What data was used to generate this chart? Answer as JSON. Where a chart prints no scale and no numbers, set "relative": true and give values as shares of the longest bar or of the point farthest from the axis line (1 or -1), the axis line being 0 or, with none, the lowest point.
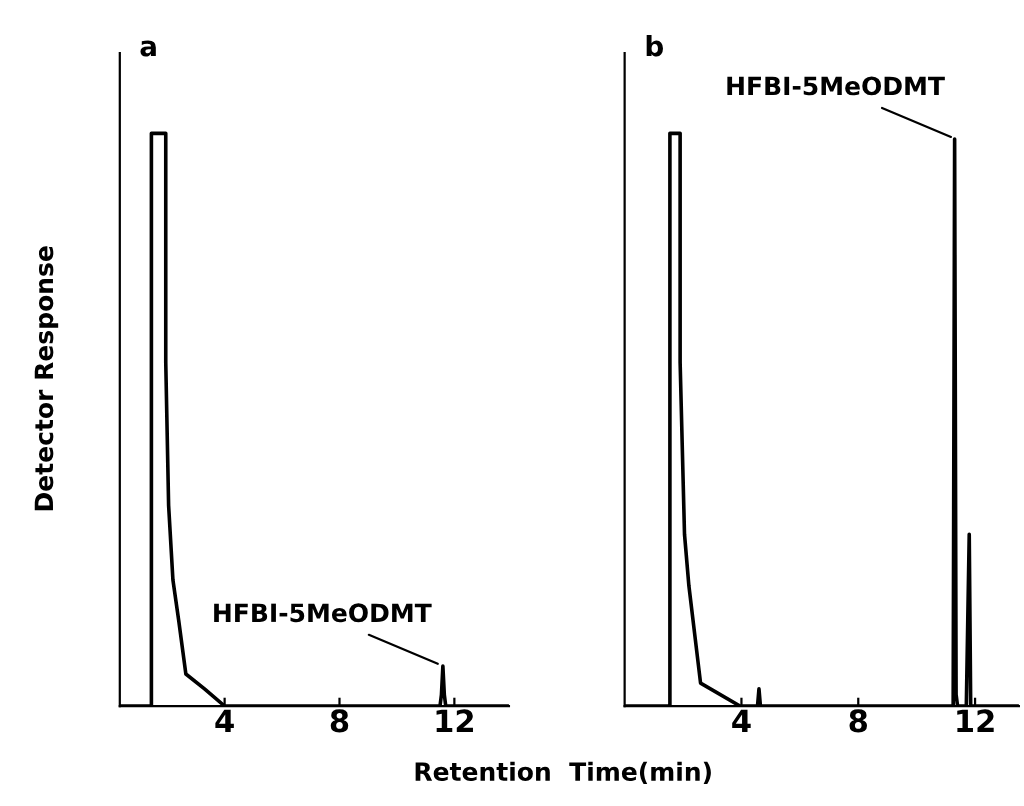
{
  "chart_data": [
    {
      "type": "line",
      "title": "a",
      "ylabel": "Detector Response",
      "xlabel": "Retention  Time(min)",
      "relative": true,
      "xlim": [
        0.35,
        13.9
      ],
      "xticks": [
        4,
        8,
        12
      ],
      "tick_labels": "x",
      "grid": false,
      "legend": false,
      "series": [
        {
          "color": "#000000",
          "x": [
            0.35,
            1.45,
            1.45,
            1.95,
            1.95,
            2.05,
            2.2,
            2.4,
            2.65,
            3.3,
            4.0,
            11.5,
            11.55,
            11.6,
            11.65,
            11.7,
            13.9
          ],
          "values": [
            0,
            0,
            1,
            1,
            0.6,
            0.35,
            0.22,
            0.15,
            0.056,
            0.03,
            0,
            0,
            0.02,
            0.07,
            0.02,
            0,
            0
          ]
        }
      ],
      "annotations": [
        {
          "text": "HFBI-5MeODMT",
          "x": 11.6,
          "y": 0.07
        }
      ]
    },
    {
      "type": "line",
      "title": "b",
      "relative": true,
      "xlim": [
        0,
        13.5
      ],
      "xticks": [
        4,
        8,
        12
      ],
      "tick_labels": "x",
      "grid": false,
      "legend": false,
      "series": [
        {
          "color": "#000000",
          "x": [
            0,
            1.55,
            1.55,
            1.9,
            1.9,
            2.05,
            2.2,
            2.6,
            3.95,
            4.55,
            4.6,
            4.65,
            11.25,
            11.3,
            11.35,
            11.4,
            11.7,
            11.75,
            11.8,
            11.85,
            13.5
          ],
          "values": [
            0,
            0,
            1,
            1,
            0.6,
            0.3,
            0.21,
            0.04,
            0,
            0,
            0.03,
            0,
            0,
            0.99,
            0.02,
            0,
            0,
            0.15,
            0.3,
            0,
            0
          ]
        }
      ],
      "annotations": [
        {
          "text": "HFBI-5MeODMT",
          "x": 11.35,
          "y": 0.99
        }
      ]
    }
  ]
}
